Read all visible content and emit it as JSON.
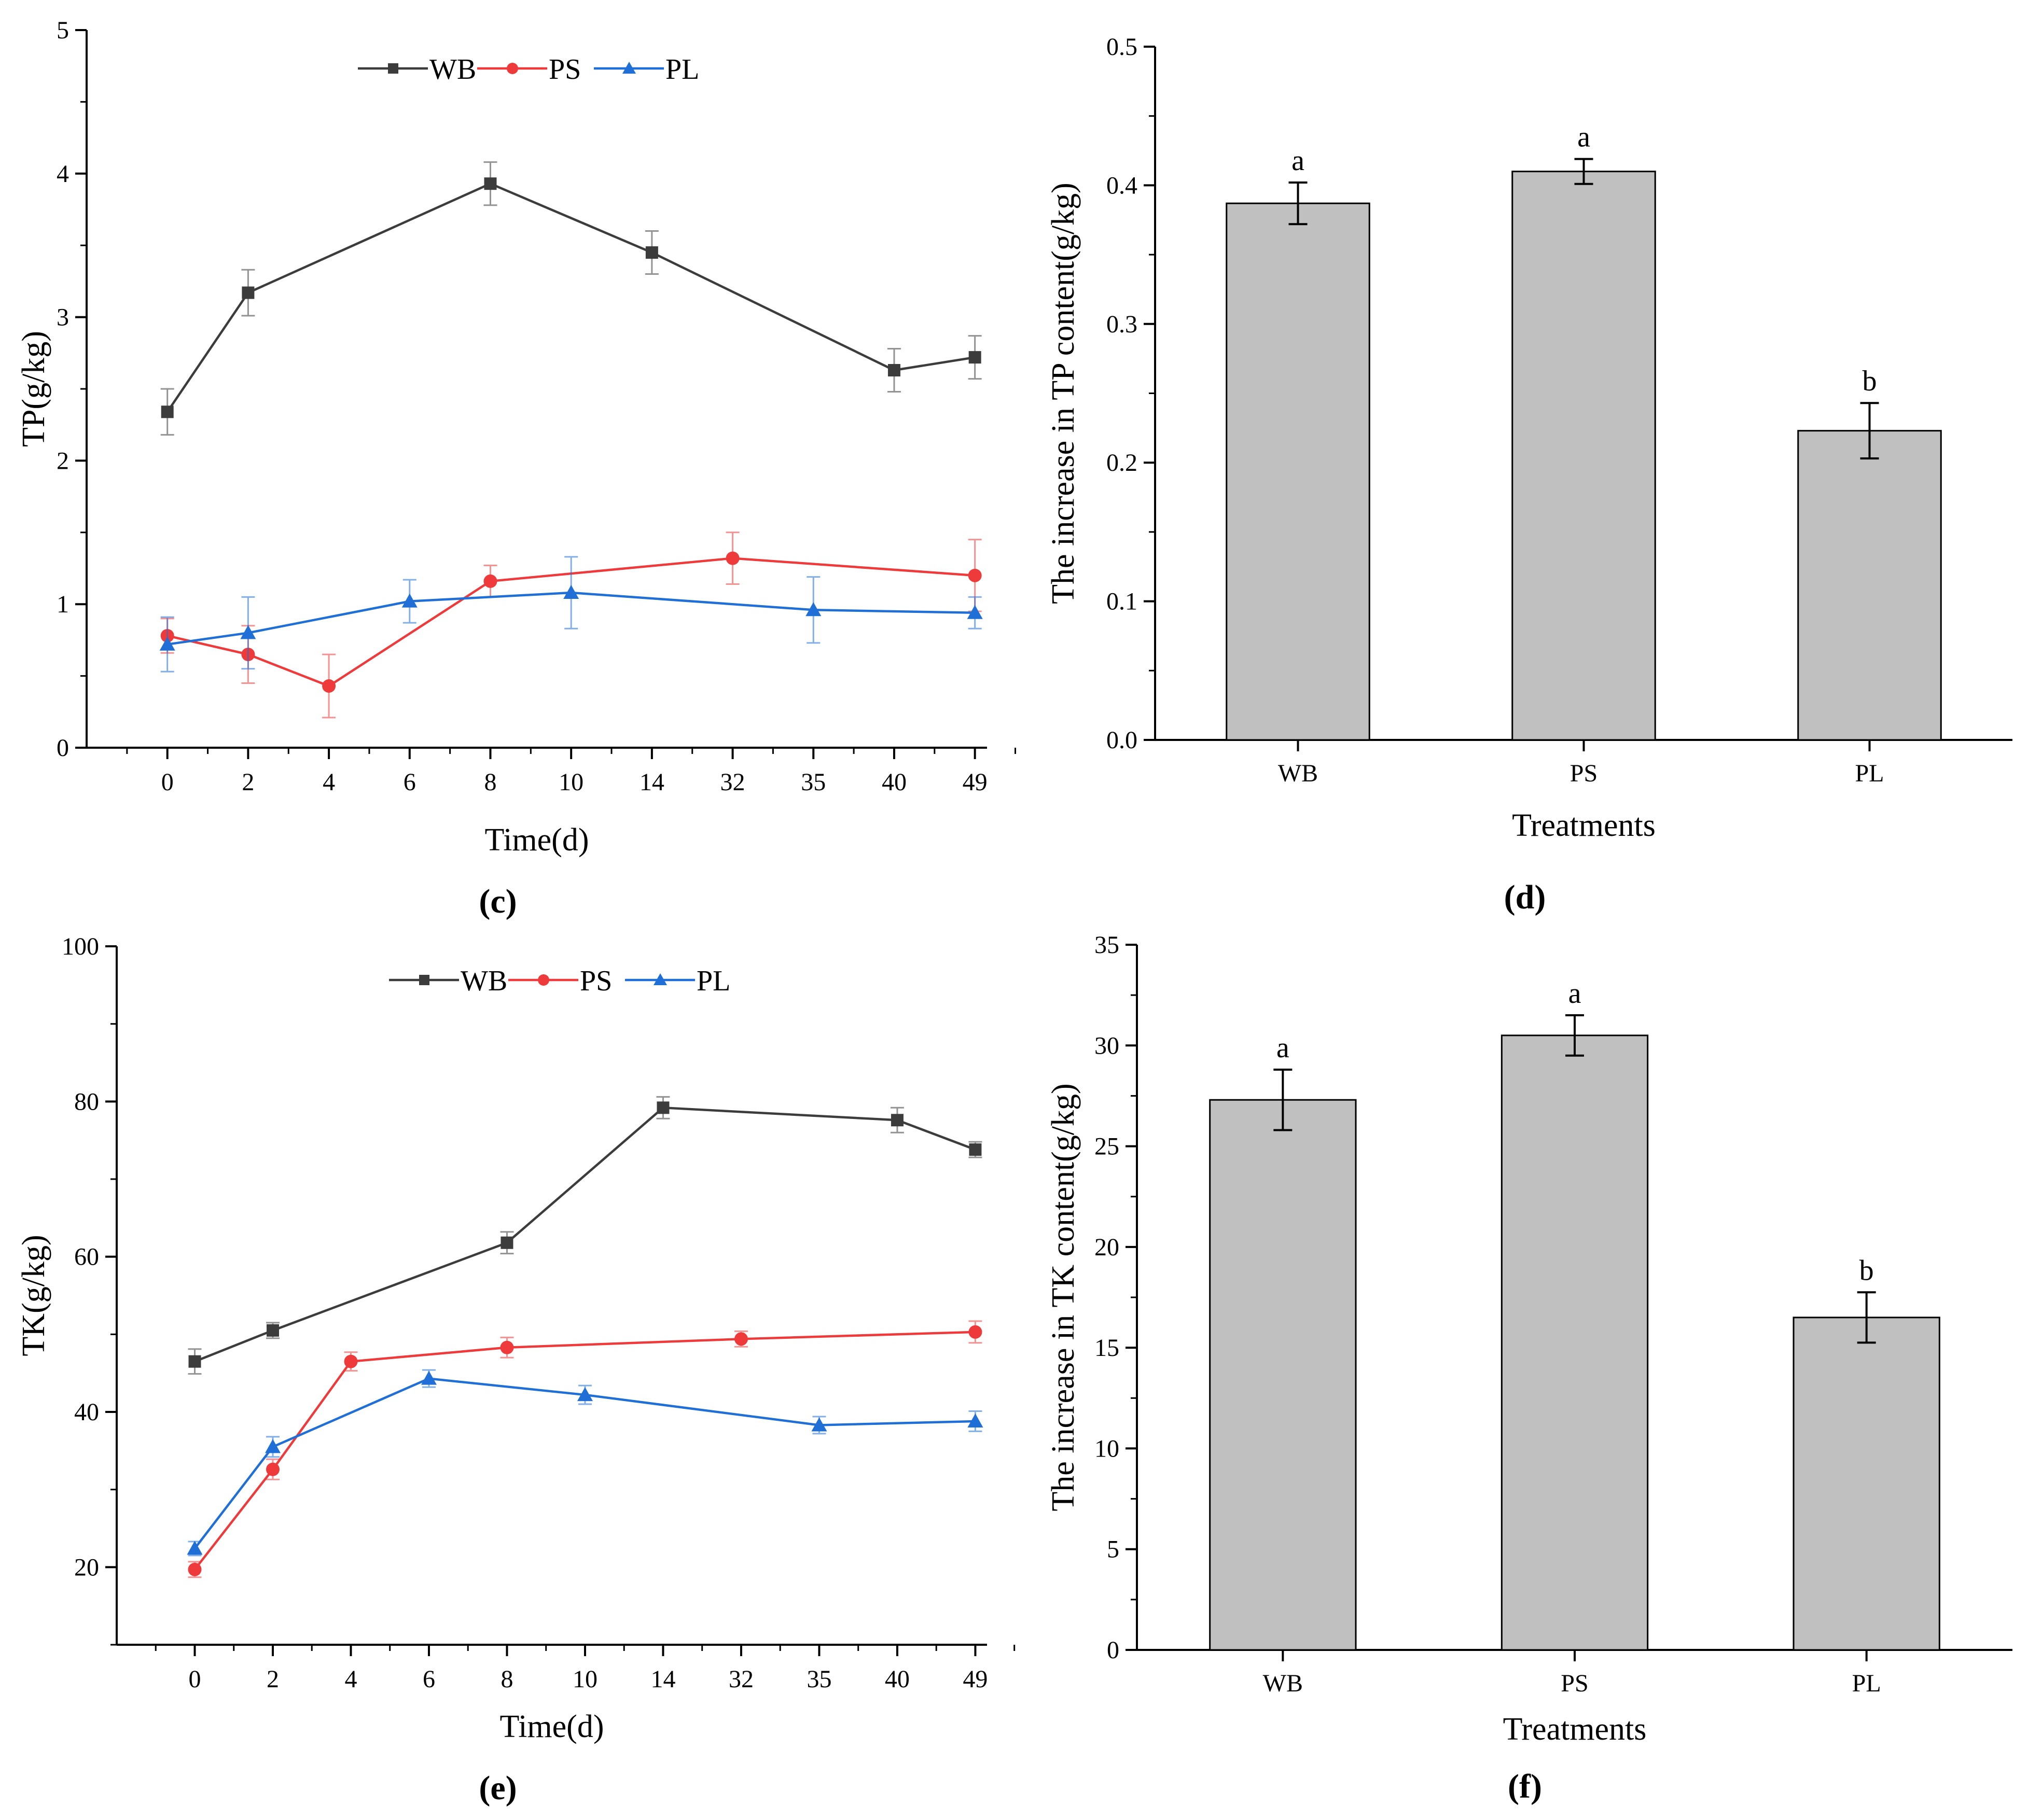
{
  "chart_data": [
    {
      "panel": "(c)",
      "type": "line",
      "xlabel": "Time(d)",
      "ylabel": "TP(g/kg)",
      "categories": [
        "0",
        "2",
        "4",
        "6",
        "8",
        "10",
        "14",
        "32",
        "35",
        "40",
        "49"
      ],
      "ylim": [
        0,
        5
      ],
      "yticks": [
        "0",
        "1",
        "2",
        "3",
        "4",
        "5"
      ],
      "legend": [
        "WB",
        "PS",
        "PL"
      ],
      "series": [
        {
          "name": "WB",
          "color": "#3c3c3c",
          "marker": "square",
          "x": [
            "0",
            "2",
            "8",
            "14",
            "40",
            "49"
          ],
          "values": [
            2.34,
            3.17,
            3.93,
            3.45,
            2.63,
            2.72
          ],
          "errors": [
            0.16,
            0.16,
            0.15,
            0.15,
            0.15,
            0.15
          ]
        },
        {
          "name": "PS",
          "color": "#ee3a3a",
          "marker": "circle",
          "x": [
            "0",
            "2",
            "4",
            "8",
            "32",
            "49"
          ],
          "values": [
            0.78,
            0.65,
            0.43,
            1.16,
            1.32,
            1.2
          ],
          "errors": [
            0.12,
            0.2,
            0.22,
            0.11,
            0.18,
            0.25
          ]
        },
        {
          "name": "PL",
          "color": "#1f6fd6",
          "marker": "triangle",
          "x": [
            "0",
            "2",
            "6",
            "10",
            "35",
            "49"
          ],
          "values": [
            0.72,
            0.8,
            1.02,
            1.08,
            0.96,
            0.94
          ],
          "errors": [
            0.19,
            0.25,
            0.15,
            0.25,
            0.23,
            0.11
          ]
        }
      ]
    },
    {
      "panel": "(d)",
      "type": "bar",
      "xlabel": "Treatments",
      "ylabel": "The increase in TP content(g/kg)",
      "categories": [
        "WB",
        "PS",
        "PL"
      ],
      "values": [
        0.387,
        0.41,
        0.223
      ],
      "errors": [
        0.015,
        0.009,
        0.02
      ],
      "labels": [
        "a",
        "a",
        "b"
      ],
      "ylim": [
        0,
        0.5
      ],
      "yticks": [
        "0.0",
        "0.1",
        "0.2",
        "0.3",
        "0.4",
        "0.5"
      ]
    },
    {
      "panel": "(e)",
      "type": "line",
      "xlabel": "Time(d)",
      "ylabel": "TK(g/kg)",
      "categories": [
        "0",
        "2",
        "4",
        "6",
        "8",
        "10",
        "14",
        "32",
        "35",
        "40",
        "49"
      ],
      "ylim": [
        10,
        100
      ],
      "yticks": [
        "20",
        "40",
        "60",
        "80",
        "100"
      ],
      "legend": [
        "WB",
        "PS",
        "PL"
      ],
      "series": [
        {
          "name": "WB",
          "color": "#3c3c3c",
          "marker": "square",
          "x": [
            "0",
            "2",
            "8",
            "14",
            "40",
            "49"
          ],
          "values": [
            46.5,
            50.5,
            61.8,
            79.2,
            77.6,
            73.8
          ],
          "errors": [
            1.6,
            1.0,
            1.4,
            1.4,
            1.6,
            1.0
          ]
        },
        {
          "name": "PS",
          "color": "#ee3a3a",
          "marker": "circle",
          "x": [
            "0",
            "2",
            "4",
            "8",
            "32",
            "49"
          ],
          "values": [
            19.7,
            32.6,
            46.5,
            48.3,
            49.4,
            50.3
          ],
          "errors": [
            1.0,
            1.3,
            1.2,
            1.3,
            1.0,
            1.4
          ]
        },
        {
          "name": "PL",
          "color": "#1f6fd6",
          "marker": "triangle",
          "x": [
            "0",
            "2",
            "6",
            "10",
            "35",
            "49"
          ],
          "values": [
            22.4,
            35.5,
            44.3,
            42.2,
            38.3,
            38.8
          ],
          "errors": [
            0.9,
            1.3,
            1.1,
            1.2,
            1.1,
            1.3
          ]
        }
      ]
    },
    {
      "panel": "(f)",
      "type": "bar",
      "xlabel": "Treatments",
      "ylabel": "The increase in TK content(g/kg)",
      "categories": [
        "WB",
        "PS",
        "PL"
      ],
      "values": [
        27.3,
        30.5,
        16.5
      ],
      "errors": [
        1.5,
        1.0,
        1.25
      ],
      "labels": [
        "a",
        "a",
        "b"
      ],
      "ylim": [
        0,
        35
      ],
      "yticks": [
        "0",
        "5",
        "10",
        "15",
        "20",
        "25",
        "30",
        "35"
      ]
    }
  ]
}
